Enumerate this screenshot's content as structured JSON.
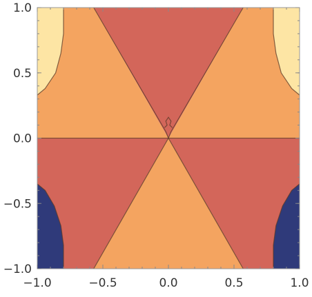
{
  "chart_data": {
    "type": "contour",
    "title": "",
    "xlabel": "",
    "ylabel": "",
    "xlim": [
      -1.0,
      1.0
    ],
    "ylim": [
      -1.0,
      1.0
    ],
    "x_ticks": [
      -1.0,
      -0.5,
      0.0,
      0.5,
      1.0
    ],
    "y_ticks": [
      -1.0,
      -0.5,
      0.0,
      0.5,
      1.0
    ],
    "x_tick_labels": [
      "-1.0",
      "-0.5",
      "0.0",
      "0.5",
      "1.0"
    ],
    "y_tick_labels": [
      "-1.0",
      "-0.5",
      "0.0",
      "0.5",
      "1.0"
    ],
    "grid": false,
    "legend": "none",
    "colors": {
      "level_low": "#2f3a7a",
      "level_mid_low": "#d3665a",
      "level_mid_high": "#f4a460",
      "level_high": "#fde5a4",
      "contour_line": "#5a3a28"
    },
    "regions": [
      {
        "level": "level_mid_high",
        "polygon": [
          [
            -1.0,
            0.0
          ],
          [
            0.0,
            0.0
          ],
          [
            -0.57,
            1.0
          ],
          [
            -1.0,
            1.0
          ]
        ]
      },
      {
        "level": "level_mid_high",
        "polygon": [
          [
            1.0,
            0.0
          ],
          [
            0.0,
            0.0
          ],
          [
            0.57,
            1.0
          ],
          [
            1.0,
            1.0
          ]
        ]
      },
      {
        "level": "level_mid_low",
        "polygon": [
          [
            0.0,
            0.0
          ],
          [
            -0.57,
            1.0
          ],
          [
            0.57,
            1.0
          ]
        ]
      },
      {
        "level": "level_mid_low",
        "polygon": [
          [
            -1.0,
            0.0
          ],
          [
            0.0,
            0.0
          ],
          [
            -0.57,
            -1.0
          ],
          [
            -1.0,
            -1.0
          ]
        ]
      },
      {
        "level": "level_mid_low",
        "polygon": [
          [
            1.0,
            0.0
          ],
          [
            0.0,
            0.0
          ],
          [
            0.57,
            -1.0
          ],
          [
            1.0,
            -1.0
          ]
        ]
      },
      {
        "level": "level_mid_high",
        "polygon": [
          [
            0.0,
            0.0
          ],
          [
            -0.57,
            -1.0
          ],
          [
            0.57,
            -1.0
          ]
        ]
      },
      {
        "level": "level_high",
        "polygon": [
          [
            -1.0,
            0.33
          ],
          [
            -0.94,
            0.38
          ],
          [
            -0.86,
            0.5
          ],
          [
            -0.82,
            0.65
          ],
          [
            -0.8,
            0.8
          ],
          [
            -0.8,
            1.0
          ],
          [
            -1.0,
            1.0
          ]
        ]
      },
      {
        "level": "level_high",
        "polygon": [
          [
            1.0,
            0.33
          ],
          [
            0.94,
            0.38
          ],
          [
            0.86,
            0.5
          ],
          [
            0.82,
            0.65
          ],
          [
            0.8,
            0.8
          ],
          [
            0.8,
            1.0
          ],
          [
            1.0,
            1.0
          ]
        ]
      },
      {
        "level": "level_low",
        "polygon": [
          [
            -1.0,
            -0.35
          ],
          [
            -0.94,
            -0.4
          ],
          [
            -0.87,
            -0.52
          ],
          [
            -0.82,
            -0.67
          ],
          [
            -0.8,
            -0.82
          ],
          [
            -0.8,
            -1.0
          ],
          [
            -1.0,
            -1.0
          ]
        ]
      },
      {
        "level": "level_low",
        "polygon": [
          [
            1.0,
            -0.35
          ],
          [
            0.94,
            -0.4
          ],
          [
            0.87,
            -0.52
          ],
          [
            0.82,
            -0.67
          ],
          [
            0.8,
            -0.82
          ],
          [
            0.8,
            -1.0
          ],
          [
            1.0,
            -1.0
          ]
        ]
      }
    ],
    "contour_lines": [
      [
        [
          -1.0,
          0.0
        ],
        [
          1.0,
          0.0
        ]
      ],
      [
        [
          -0.57,
          1.0
        ],
        [
          -0.02,
          0.05
        ],
        [
          0.0,
          0.0
        ]
      ],
      [
        [
          0.57,
          1.0
        ],
        [
          0.02,
          0.05
        ],
        [
          0.0,
          0.0
        ]
      ],
      [
        [
          -0.57,
          -1.0
        ],
        [
          0.0,
          0.0
        ]
      ],
      [
        [
          0.57,
          -1.0
        ],
        [
          0.0,
          0.0
        ]
      ],
      [
        [
          -0.03,
          0.08
        ],
        [
          -0.01,
          0.1
        ],
        [
          -0.02,
          0.13
        ],
        [
          0.0,
          0.16
        ],
        [
          0.02,
          0.13
        ],
        [
          0.01,
          0.1
        ],
        [
          0.03,
          0.08
        ]
      ],
      [
        [
          -1.0,
          0.33
        ],
        [
          -0.94,
          0.38
        ],
        [
          -0.86,
          0.5
        ],
        [
          -0.82,
          0.65
        ],
        [
          -0.8,
          0.8
        ],
        [
          -0.8,
          1.0
        ]
      ],
      [
        [
          1.0,
          0.33
        ],
        [
          0.94,
          0.38
        ],
        [
          0.86,
          0.5
        ],
        [
          0.82,
          0.65
        ],
        [
          0.8,
          0.8
        ],
        [
          0.8,
          1.0
        ]
      ],
      [
        [
          -1.0,
          -0.35
        ],
        [
          -0.94,
          -0.4
        ],
        [
          -0.87,
          -0.52
        ],
        [
          -0.82,
          -0.67
        ],
        [
          -0.8,
          -0.82
        ],
        [
          -0.8,
          -1.0
        ]
      ],
      [
        [
          1.0,
          -0.35
        ],
        [
          0.94,
          -0.4
        ],
        [
          0.87,
          -0.52
        ],
        [
          0.82,
          -0.67
        ],
        [
          0.8,
          -0.82
        ],
        [
          0.8,
          -1.0
        ]
      ]
    ]
  }
}
